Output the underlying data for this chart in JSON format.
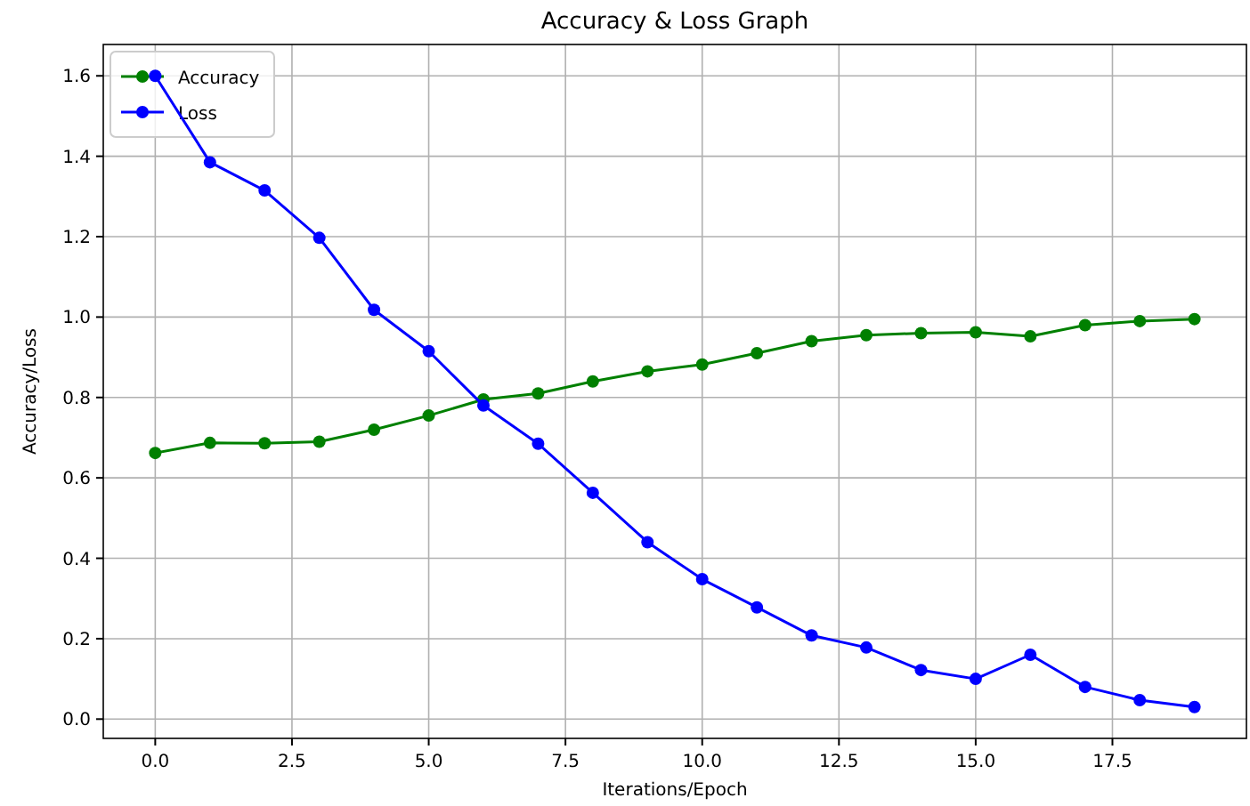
{
  "chart_data": {
    "type": "line",
    "title": "Accuracy & Loss Graph",
    "xlabel": "Iterations/Epoch",
    "ylabel": "Accuracy/Loss",
    "x": [
      0,
      1,
      2,
      3,
      4,
      5,
      6,
      7,
      8,
      9,
      10,
      11,
      12,
      13,
      14,
      15,
      16,
      17,
      18,
      19
    ],
    "series": [
      {
        "name": "Accuracy",
        "color": "#008000",
        "values": [
          0.662,
          0.687,
          0.686,
          0.69,
          0.72,
          0.755,
          0.795,
          0.81,
          0.84,
          0.865,
          0.882,
          0.91,
          0.94,
          0.955,
          0.96,
          0.962,
          0.952,
          0.98,
          0.99,
          0.995
        ]
      },
      {
        "name": "Loss",
        "color": "#0000ff",
        "values": [
          1.6,
          1.385,
          1.315,
          1.197,
          1.018,
          0.915,
          0.78,
          0.685,
          0.563,
          0.44,
          0.348,
          0.278,
          0.208,
          0.178,
          0.122,
          0.1,
          0.16,
          0.08,
          0.047,
          0.03
        ]
      }
    ],
    "xlim": [
      -0.95,
      19.95
    ],
    "ylim": [
      -0.048,
      1.678
    ],
    "xticks": [
      {
        "value": 0,
        "label": "0.0"
      },
      {
        "value": 2.5,
        "label": "2.5"
      },
      {
        "value": 5,
        "label": "5.0"
      },
      {
        "value": 7.5,
        "label": "7.5"
      },
      {
        "value": 10,
        "label": "10.0"
      },
      {
        "value": 12.5,
        "label": "12.5"
      },
      {
        "value": 15,
        "label": "15.0"
      },
      {
        "value": 17.5,
        "label": "17.5"
      }
    ],
    "yticks": [
      {
        "value": 0,
        "label": "0.0"
      },
      {
        "value": 0.2,
        "label": "0.2"
      },
      {
        "value": 0.4,
        "label": "0.4"
      },
      {
        "value": 0.6,
        "label": "0.6"
      },
      {
        "value": 0.8,
        "label": "0.8"
      },
      {
        "value": 1,
        "label": "1.0"
      },
      {
        "value": 1.2,
        "label": "1.2"
      },
      {
        "value": 1.4,
        "label": "1.4"
      },
      {
        "value": 1.6,
        "label": "1.6"
      }
    ],
    "grid": true,
    "legend": "top left",
    "marker": "circle",
    "line_style": "solid"
  }
}
